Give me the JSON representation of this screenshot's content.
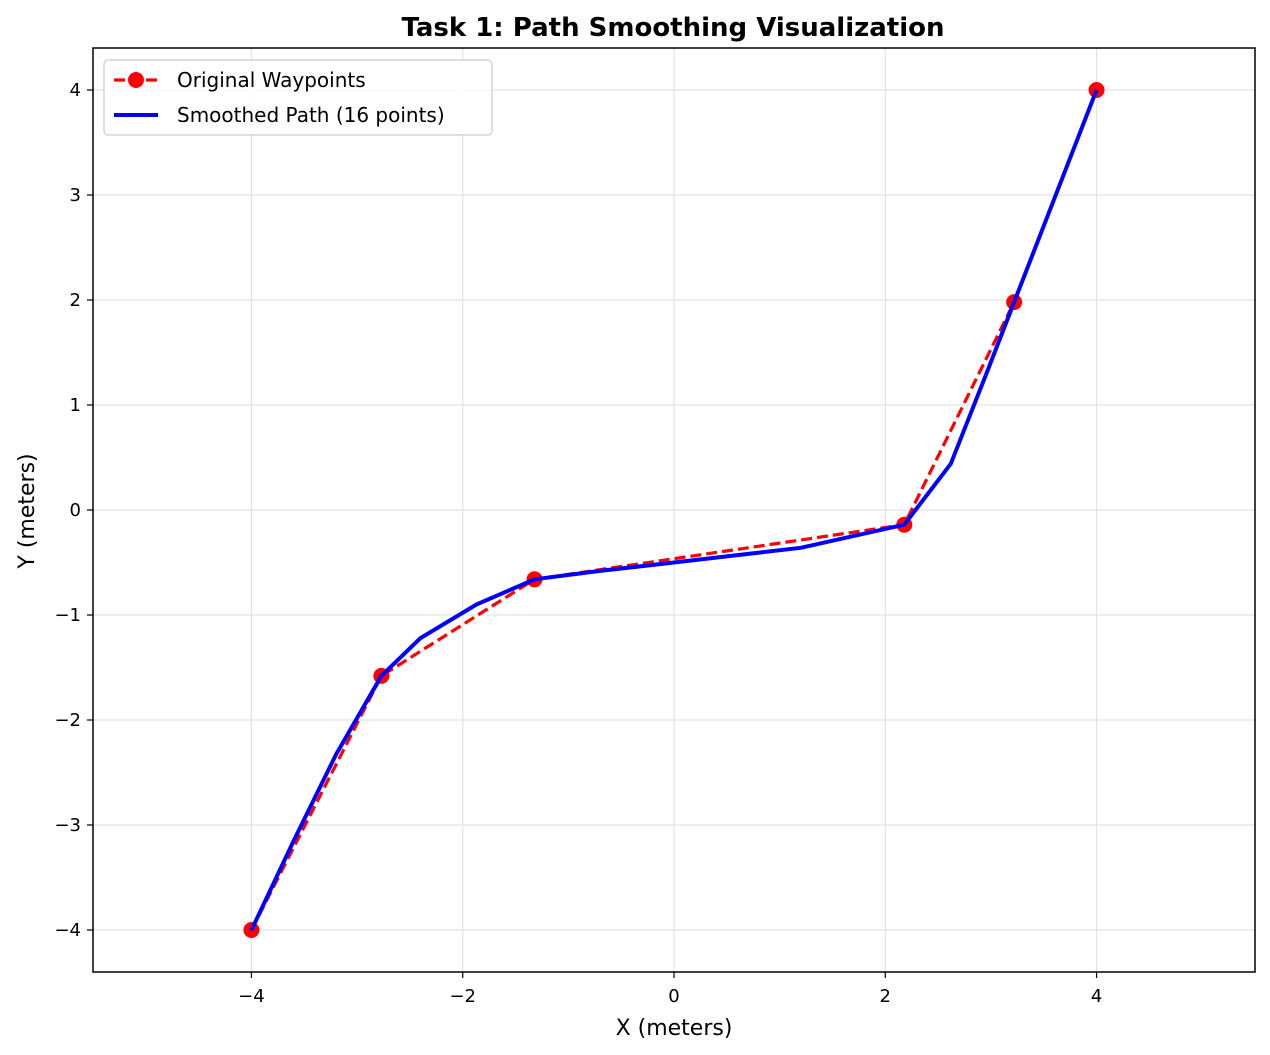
{
  "chart_data": {
    "type": "line",
    "title": "Task 1: Path Smoothing Visualization",
    "xlabel": "X (meters)",
    "ylabel": "Y (meters)",
    "xlim": [
      -5.5,
      5.5
    ],
    "ylim": [
      -4.4,
      4.4
    ],
    "xticks": [
      -4,
      -2,
      0,
      2,
      4
    ],
    "yticks": [
      -4,
      -3,
      -2,
      -1,
      0,
      1,
      2,
      3,
      4
    ],
    "xtick_labels": [
      "−4",
      "−2",
      "0",
      "2",
      "4"
    ],
    "ytick_labels": [
      "−4",
      "−3",
      "−2",
      "−1",
      "0",
      "1",
      "2",
      "3",
      "4"
    ],
    "grid": true,
    "legend_position": "top-left",
    "series": [
      {
        "name": "Original Waypoints",
        "color": "#ff0000",
        "style": "dashed-with-markers",
        "x": [
          -4.0,
          -2.77,
          -1.32,
          2.18,
          3.22,
          4.0
        ],
        "y": [
          -4.0,
          -1.58,
          -0.66,
          -0.14,
          1.98,
          4.0
        ]
      },
      {
        "name": "Smoothed Path (16 points)",
        "color": "#0000ff",
        "style": "solid",
        "x": [
          -4.0,
          -3.6,
          -3.2,
          -2.77,
          -2.4,
          -1.87,
          -1.32,
          -0.7,
          0.0,
          0.6,
          1.2,
          2.18,
          2.62,
          2.95,
          3.22,
          4.0
        ],
        "y": [
          -4.0,
          -3.15,
          -2.33,
          -1.58,
          -1.22,
          -0.9,
          -0.66,
          -0.58,
          -0.5,
          -0.43,
          -0.36,
          -0.14,
          0.44,
          1.28,
          1.98,
          4.0
        ]
      }
    ]
  }
}
